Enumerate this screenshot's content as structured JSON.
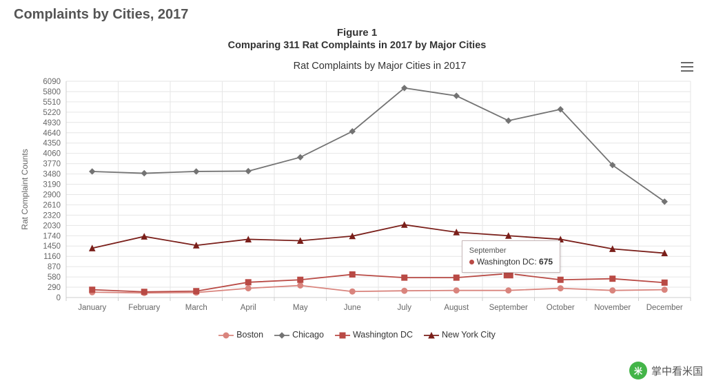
{
  "page_heading": "Complaints by Cities, 2017",
  "figure_number": "Figure 1",
  "figure_subtitle": "Comparing 311 Rat Complaints in 2017 by Major Cities",
  "chart": {
    "type": "line",
    "title": "Rat Complaints by Major Cities in 2017",
    "y_axis_title": "Rat Complaint Counts",
    "categories": [
      "January",
      "February",
      "March",
      "April",
      "May",
      "June",
      "July",
      "August",
      "September",
      "October",
      "November",
      "December"
    ],
    "ylim": [
      0,
      6090
    ],
    "ytick_step": 290,
    "yticks": [
      0,
      290,
      580,
      870,
      1160,
      1450,
      1740,
      2030,
      2320,
      2610,
      2900,
      3190,
      3480,
      3770,
      4060,
      4350,
      4640,
      4930,
      5220,
      5510,
      5800,
      6090
    ],
    "background_color": "#ffffff",
    "grid_color": "#e6e6e6",
    "axis_label_color": "#666666",
    "axis_label_fontsize": 11.5,
    "line_width": 1.8,
    "marker_size": 4,
    "series": [
      {
        "name": "Boston",
        "color": "#d9847d",
        "marker": "circle",
        "values": [
          150,
          130,
          140,
          260,
          340,
          170,
          190,
          200,
          200,
          260,
          200,
          220
        ]
      },
      {
        "name": "Chicago",
        "color": "#737373",
        "marker": "diamond",
        "values": [
          3550,
          3500,
          3550,
          3560,
          3950,
          4680,
          5900,
          5680,
          4980,
          5300,
          3730,
          2700
        ]
      },
      {
        "name": "Washington DC",
        "color": "#b94a45",
        "marker": "square",
        "values": [
          220,
          160,
          180,
          430,
          500,
          650,
          560,
          560,
          675,
          500,
          530,
          420
        ]
      },
      {
        "name": "New York City",
        "color": "#7a1f1a",
        "marker": "triangle",
        "values": [
          1390,
          1720,
          1470,
          1640,
          1600,
          1730,
          2050,
          1840,
          1740,
          1640,
          1370,
          1250
        ]
      }
    ],
    "tooltip": {
      "category": "September",
      "series_name": "Washington DC",
      "series_color": "#b94a45",
      "value_label": "675",
      "highlight_marker_size": 8
    },
    "menu_icon_name": "hamburger-icon"
  },
  "legend": {
    "items": [
      {
        "label": "Boston",
        "color": "#d9847d",
        "marker": "circle"
      },
      {
        "label": "Chicago",
        "color": "#737373",
        "marker": "diamond"
      },
      {
        "label": "Washington DC",
        "color": "#b94a45",
        "marker": "square"
      },
      {
        "label": "New York City",
        "color": "#7a1f1a",
        "marker": "triangle"
      }
    ]
  },
  "watermark_text": "掌中看米国",
  "watermark_circle_text": "米"
}
